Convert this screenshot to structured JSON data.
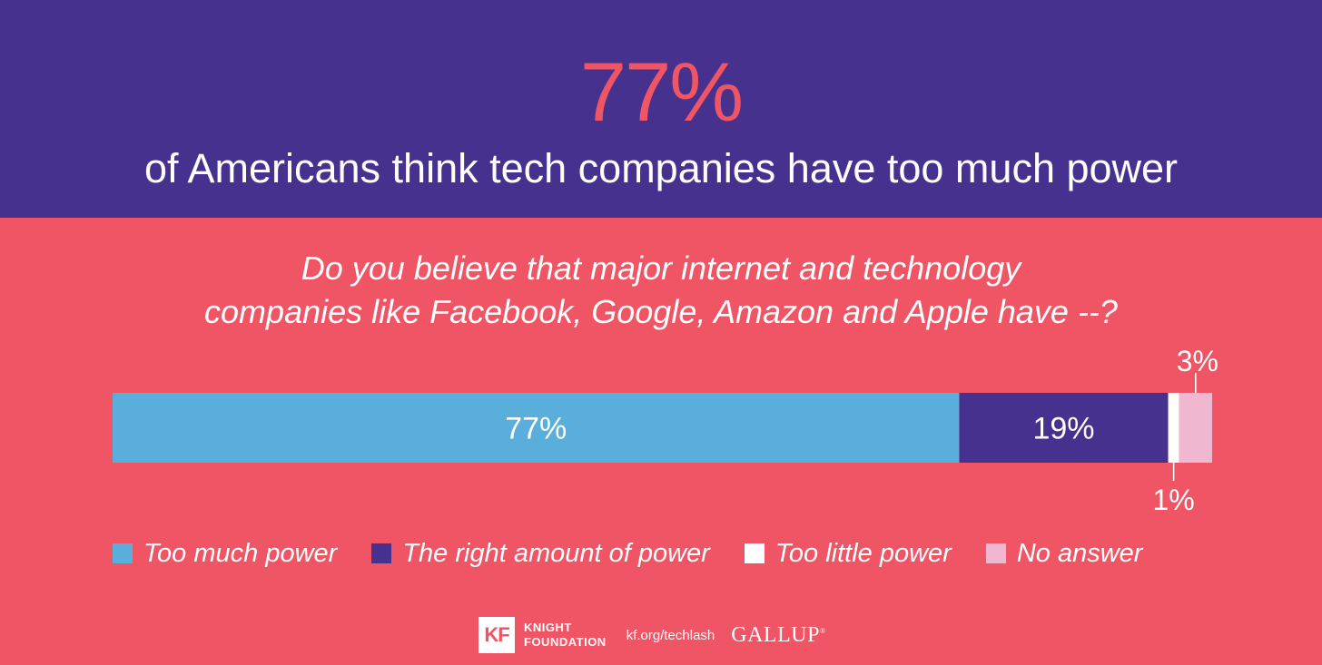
{
  "header": {
    "big_stat": "77%",
    "headline": "of Americans think tech companies have too much power"
  },
  "question": {
    "line1": "Do you believe that major internet and technology",
    "line2": "companies like Facebook, Google, Amazon and Apple have --?"
  },
  "chart_data": {
    "type": "bar",
    "orientation": "horizontal-stacked",
    "categories": [
      "Too much power",
      "The right amount of power",
      "Too little power",
      "No answer"
    ],
    "values": [
      77,
      19,
      1,
      3
    ],
    "value_labels": [
      "77%",
      "19%",
      "1%",
      "3%"
    ],
    "unit": "%",
    "colors": [
      "#5aaedc",
      "#47318e",
      "#ffffff",
      "#f0b7d0"
    ],
    "legend_position": "bottom",
    "xlim": [
      0,
      100
    ]
  },
  "footer": {
    "logo_mark": "KF",
    "org_line1": "KNIGHT",
    "org_line2": "FOUNDATION",
    "url": "kf.org/techlash",
    "partner": "GALLUP",
    "partner_mark": "®"
  }
}
